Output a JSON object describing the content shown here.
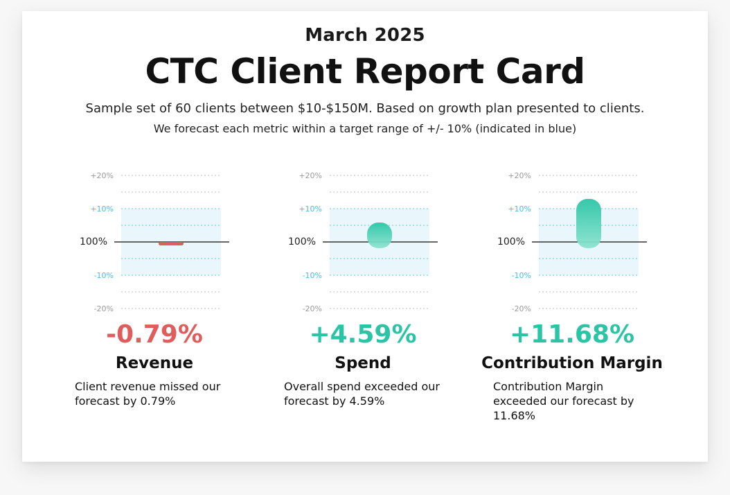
{
  "header": {
    "date": "March 2025",
    "title": "CTC Client Report Card",
    "subtitle": "Sample set of 60 clients between $10-$150M. Based on growth plan presented to clients.",
    "note": "We forecast each metric within a target range of +/- 10% (indicated in blue)"
  },
  "colors": {
    "negative": "#e05d5d",
    "positive": "#2bc5a6",
    "band": "#e9f7fd",
    "band_label": "#4cb8e8"
  },
  "chart_data": [
    {
      "type": "bar",
      "metric": "Revenue",
      "value": -0.79,
      "value_label": "-0.79%",
      "description": "Client revenue missed our forecast by 0.79%",
      "ylim": [
        -20,
        20
      ],
      "yticks": [
        "+20%",
        "+10%",
        "100%",
        "-10%",
        "-20%"
      ],
      "target_range": [
        -10,
        10
      ]
    },
    {
      "type": "bar",
      "metric": "Spend",
      "value": 4.59,
      "value_label": "+4.59%",
      "description": "Overall spend exceeded our forecast by 4.59%",
      "ylim": [
        -20,
        20
      ],
      "yticks": [
        "+20%",
        "+10%",
        "100%",
        "-10%",
        "-20%"
      ],
      "target_range": [
        -10,
        10
      ]
    },
    {
      "type": "bar",
      "metric": "Contribution Margin",
      "value": 11.68,
      "value_label": "+11.68%",
      "description": "Contribution Margin exceeded our forecast by 11.68%",
      "ylim": [
        -20,
        20
      ],
      "yticks": [
        "+20%",
        "+10%",
        "100%",
        "-10%",
        "-20%"
      ],
      "target_range": [
        -10,
        10
      ]
    }
  ]
}
